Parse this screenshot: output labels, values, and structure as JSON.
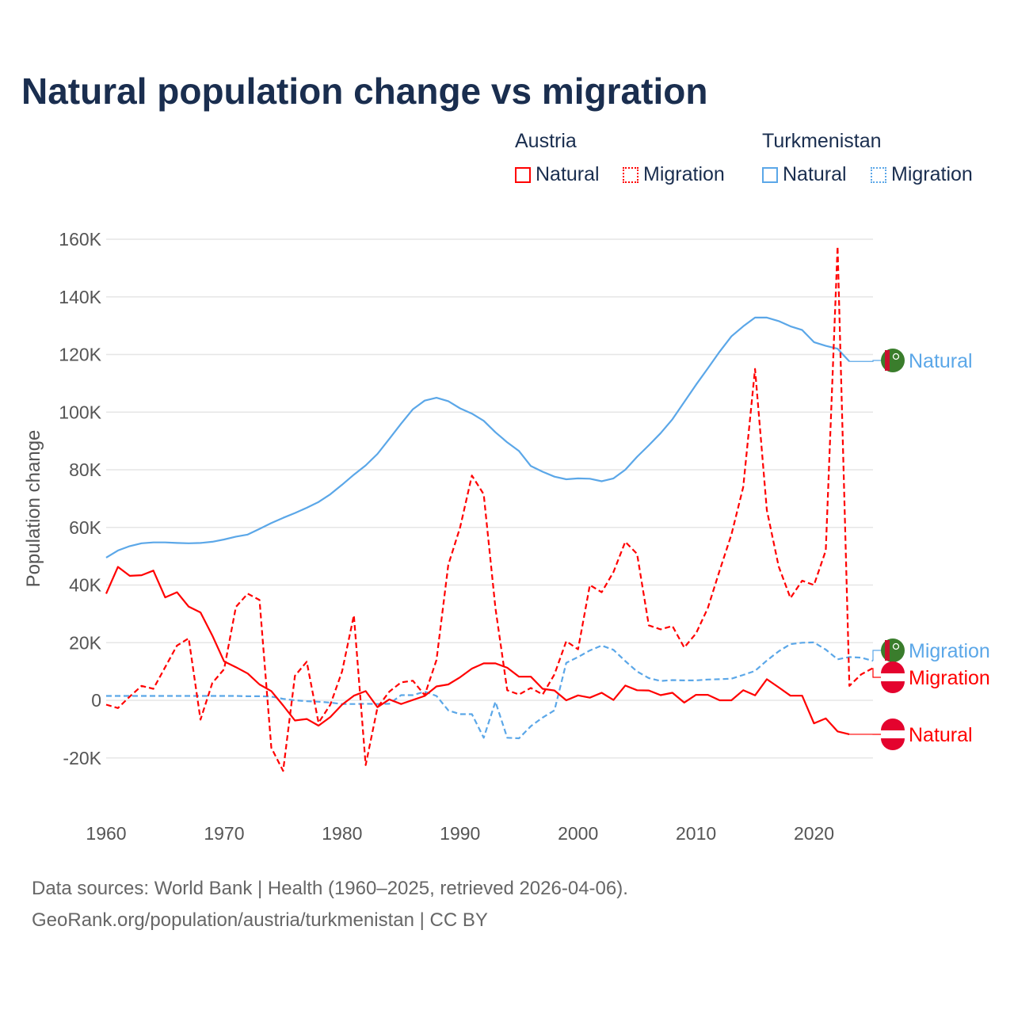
{
  "chart_data": {
    "type": "line",
    "title": "Natural population change vs migration",
    "xlabel": "",
    "ylabel": "Population change",
    "xlim": [
      1960,
      2025
    ],
    "ylim": [
      -20000,
      160000
    ],
    "yticks": [
      {
        "v": -20000,
        "l": "-20K"
      },
      {
        "v": 0,
        "l": "0"
      },
      {
        "v": 20000,
        "l": "20K"
      },
      {
        "v": 40000,
        "l": "40K"
      },
      {
        "v": 60000,
        "l": "60K"
      },
      {
        "v": 80000,
        "l": "80K"
      },
      {
        "v": 100000,
        "l": "100K"
      },
      {
        "v": 120000,
        "l": "120K"
      },
      {
        "v": 140000,
        "l": "140K"
      },
      {
        "v": 160000,
        "l": "160K"
      }
    ],
    "xticks": [
      "1960",
      "1970",
      "1980",
      "1990",
      "2000",
      "2010",
      "2020"
    ],
    "grid": true,
    "legend_placement": "top-right",
    "legend": {
      "austria": "Austria",
      "turkmenistan": "Turkmenistan",
      "natural": "Natural",
      "migration": "Migration"
    },
    "colors": {
      "austria": "#ff0000",
      "turkmenistan": "#5ba7e8"
    },
    "series": [
      {
        "name": "Turkmenistan Natural",
        "country": "turkmenistan",
        "style": "solid",
        "label": "Natural",
        "start": 1960,
        "values": [
          49.5,
          52,
          53.5,
          54.5,
          54.8,
          54.8,
          54.6,
          54.5,
          54.6,
          55,
          55.8,
          56.8,
          57.5,
          59.5,
          61.5,
          63.3,
          65,
          66.8,
          68.8,
          71.5,
          74.8,
          78.3,
          81.5,
          85.5,
          90.7,
          96,
          101,
          104,
          105,
          103.8,
          101.3,
          99.5,
          97,
          93,
          89.5,
          86.5,
          81.3,
          79.3,
          77.6,
          76.7,
          77,
          76.9,
          76,
          77,
          80,
          84.5,
          88.5,
          92.7,
          97.5,
          103.5,
          109.5,
          115.2,
          121,
          126.3,
          129.8,
          132.8,
          132.8,
          131.6,
          129.8,
          128.5,
          124.3,
          123,
          122,
          117.6
        ]
      },
      {
        "name": "Turkmenistan Migration",
        "country": "turkmenistan",
        "style": "dashed",
        "label": "Migration",
        "start": 1960,
        "values": [
          1.5,
          1.5,
          1.5,
          1.5,
          1.5,
          1.5,
          1.5,
          1.5,
          1.5,
          1.5,
          1.5,
          1.5,
          1.4,
          1.4,
          1.3,
          0.5,
          0,
          -0.3,
          -0.5,
          -0.8,
          -1.3,
          -1.3,
          -1.2,
          -1.3,
          -1.2,
          1.8,
          1.8,
          3,
          1.5,
          -3.5,
          -4.8,
          -4.8,
          -13,
          -0.5,
          -13,
          -13.2,
          -9,
          -6,
          -3.5,
          13,
          15,
          17.3,
          19,
          17.5,
          13.6,
          10,
          7.7,
          6.7,
          7,
          6.9,
          6.9,
          7.2,
          7.3,
          7.5,
          8.8,
          10.2,
          13.8,
          17,
          19.5,
          20,
          20.1,
          17.6,
          14.2,
          15,
          14.8,
          13.7
        ]
      },
      {
        "name": "Austria Natural",
        "country": "austria",
        "style": "solid",
        "label": "Natural",
        "start": 1960,
        "values": [
          37,
          46.3,
          43.2,
          43.4,
          45,
          35.7,
          37.5,
          32.5,
          30.5,
          22.5,
          13.5,
          11.5,
          9.3,
          5.5,
          3.2,
          -1.8,
          -7,
          -6.5,
          -8.8,
          -5.8,
          -1.5,
          1.6,
          3.2,
          -2.4,
          0.3,
          -1.3,
          0.1,
          1.5,
          4.8,
          5.5,
          8,
          11,
          12.8,
          12.8,
          11.3,
          8.2,
          8.2,
          4,
          3.4,
          0,
          1.7,
          0.9,
          2.6,
          0.1,
          5.1,
          3.5,
          3.4,
          1.8,
          2.6,
          -0.8,
          1.9,
          1.9,
          0,
          0,
          3.5,
          1.7,
          7.3,
          4.5,
          1.6,
          1.6,
          -8,
          -6.3,
          -10.8,
          -11.8
        ]
      },
      {
        "name": "Austria Migration",
        "country": "austria",
        "style": "dashed",
        "label": "Migration",
        "start": 1960,
        "values": [
          -1.5,
          -2.7,
          1.3,
          5,
          4,
          11.5,
          19,
          21.5,
          -6.7,
          6,
          10.8,
          32.4,
          37,
          34.8,
          -16.5,
          -24.5,
          8.5,
          13.4,
          -7.8,
          -1.5,
          10,
          29.5,
          -22.5,
          -2.5,
          3,
          6.2,
          6.8,
          1.8,
          14,
          47,
          60,
          78,
          71.5,
          32,
          3.5,
          2,
          4.3,
          2,
          9,
          20.5,
          17.7,
          40,
          37.5,
          44.5,
          55,
          50.8,
          26,
          24.6,
          25.8,
          18.3,
          23.2,
          32,
          45,
          57.5,
          74,
          115,
          66,
          46.5,
          35.5,
          41.5,
          40,
          52,
          157.5,
          5,
          9,
          11.2
        ]
      }
    ],
    "value_unit_note": "values in thousands"
  },
  "footer": {
    "line1": "Data sources: World Bank | Health (1960–2025, retrieved 2026-04-06).",
    "line2": "GeoRank.org/population/austria/turkmenistan | CC BY"
  }
}
